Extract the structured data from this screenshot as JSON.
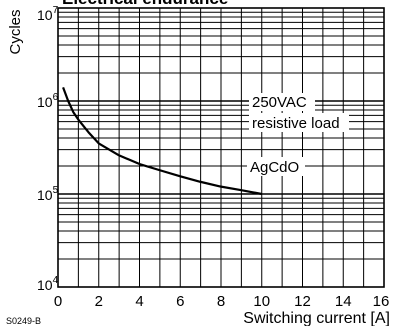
{
  "chart_data": {
    "type": "line",
    "title": "Electrical endurance",
    "xlabel": "Switching current [A]",
    "ylabel": "Cycles",
    "xlim": [
      0,
      16
    ],
    "ylim": [
      10000,
      10000000
    ],
    "y_scale": "log",
    "grid": true,
    "x_ticks": [
      "0",
      "2",
      "4",
      "6",
      "8",
      "10",
      "12",
      "14",
      "16"
    ],
    "y_ticks": [
      {
        "base": "10",
        "exp": "4",
        "value": 10000
      },
      {
        "base": "10",
        "exp": "5",
        "value": 100000
      },
      {
        "base": "10",
        "exp": "6",
        "value": 1000000
      },
      {
        "base": "10",
        "exp": "7",
        "value": 10000000
      }
    ],
    "series": [
      {
        "name": "AgCdO",
        "x": [
          0.25,
          0.5,
          0.75,
          1.0,
          1.5,
          2.0,
          3.0,
          4.0,
          5.0,
          6.0,
          7.0,
          8.0,
          9.0,
          10.0
        ],
        "y": [
          1400000,
          1000000,
          760000,
          630000,
          460000,
          350000,
          260000,
          210000,
          180000,
          155000,
          135000,
          120000,
          110000,
          100000
        ]
      }
    ],
    "annotations": [
      "250VAC",
      "resistive load",
      "AgCdO"
    ]
  },
  "figure_code": "S0249-B"
}
